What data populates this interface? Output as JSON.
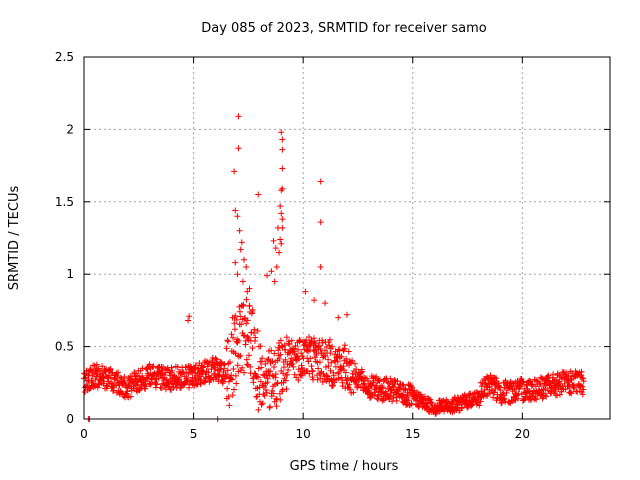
{
  "chart_data": {
    "type": "scatter",
    "title": "Day 085 of 2023, SRMTID for receiver samo",
    "xlabel": "GPS time / hours",
    "ylabel": "SRMTID / TECUs",
    "xlim": [
      0,
      24
    ],
    "ylim": [
      0,
      2.5
    ],
    "grid": true,
    "marker": "plus",
    "color": "#ff0000",
    "x_ticks": [
      0,
      5,
      10,
      15,
      20
    ],
    "y_ticks": [
      0,
      0.5,
      1,
      1.5,
      2,
      2.5
    ],
    "x_tick_labels": [
      "0",
      "5",
      "10",
      "15",
      "20"
    ],
    "y_tick_labels": [
      "0",
      "0.5",
      "1",
      "1.5",
      "2",
      "2.5"
    ],
    "baseline_profile": [
      [
        0.0,
        0.25
      ],
      [
        0.5,
        0.3
      ],
      [
        1.0,
        0.28
      ],
      [
        2.0,
        0.22
      ],
      [
        3.0,
        0.3
      ],
      [
        4.0,
        0.28
      ],
      [
        5.0,
        0.3
      ],
      [
        6.0,
        0.35
      ],
      [
        6.5,
        0.3
      ],
      [
        7.0,
        0.55
      ],
      [
        7.5,
        0.6
      ],
      [
        8.0,
        0.3
      ],
      [
        8.5,
        0.25
      ],
      [
        9.0,
        0.35
      ],
      [
        10.0,
        0.45
      ],
      [
        11.0,
        0.4
      ],
      [
        12.0,
        0.35
      ],
      [
        13.0,
        0.22
      ],
      [
        14.0,
        0.2
      ],
      [
        15.0,
        0.15
      ],
      [
        16.0,
        0.08
      ],
      [
        17.0,
        0.1
      ],
      [
        18.0,
        0.15
      ],
      [
        18.5,
        0.25
      ],
      [
        19.0,
        0.18
      ],
      [
        20.0,
        0.2
      ],
      [
        21.0,
        0.22
      ],
      [
        22.0,
        0.25
      ],
      [
        22.8,
        0.25
      ]
    ],
    "x_range": [
      0.0,
      22.8
    ],
    "sample_count": 1600,
    "outliers": [
      {
        "x": 6.85,
        "y": 1.71
      },
      {
        "x": 7.05,
        "y": 2.09
      },
      {
        "x": 7.05,
        "y": 1.87
      },
      {
        "x": 6.9,
        "y": 1.44
      },
      {
        "x": 7.0,
        "y": 1.4
      },
      {
        "x": 7.1,
        "y": 1.3
      },
      {
        "x": 7.2,
        "y": 1.22
      },
      {
        "x": 7.3,
        "y": 1.1
      },
      {
        "x": 7.4,
        "y": 1.05
      },
      {
        "x": 7.15,
        "y": 1.17
      },
      {
        "x": 6.9,
        "y": 1.08
      },
      {
        "x": 7.0,
        "y": 1.0
      },
      {
        "x": 7.25,
        "y": 0.95
      },
      {
        "x": 7.45,
        "y": 0.88
      },
      {
        "x": 7.55,
        "y": 0.9
      },
      {
        "x": 7.95,
        "y": 1.55
      },
      {
        "x": 8.35,
        "y": 0.99
      },
      {
        "x": 8.55,
        "y": 1.02
      },
      {
        "x": 8.75,
        "y": 1.18
      },
      {
        "x": 8.65,
        "y": 1.23
      },
      {
        "x": 8.85,
        "y": 1.32
      },
      {
        "x": 9.0,
        "y": 1.98
      },
      {
        "x": 9.05,
        "y": 1.93
      },
      {
        "x": 9.05,
        "y": 1.86
      },
      {
        "x": 9.05,
        "y": 1.73
      },
      {
        "x": 9.0,
        "y": 1.58
      },
      {
        "x": 9.05,
        "y": 1.59
      },
      {
        "x": 8.95,
        "y": 1.47
      },
      {
        "x": 9.0,
        "y": 1.42
      },
      {
        "x": 9.05,
        "y": 1.38
      },
      {
        "x": 9.05,
        "y": 1.32
      },
      {
        "x": 8.95,
        "y": 1.24
      },
      {
        "x": 9.0,
        "y": 1.21
      },
      {
        "x": 8.9,
        "y": 1.15
      },
      {
        "x": 8.8,
        "y": 1.05
      },
      {
        "x": 8.7,
        "y": 0.95
      },
      {
        "x": 10.8,
        "y": 1.64
      },
      {
        "x": 10.8,
        "y": 1.36
      },
      {
        "x": 10.8,
        "y": 1.05
      },
      {
        "x": 10.1,
        "y": 0.88
      },
      {
        "x": 10.5,
        "y": 0.82
      },
      {
        "x": 11.0,
        "y": 0.8
      },
      {
        "x": 11.6,
        "y": 0.7
      },
      {
        "x": 12.0,
        "y": 0.72
      },
      {
        "x": 4.8,
        "y": 0.71
      },
      {
        "x": 4.75,
        "y": 0.68
      },
      {
        "x": 0.2,
        "y": 0.0
      },
      {
        "x": 0.25,
        "y": 0.0
      },
      {
        "x": 6.1,
        "y": 0.0
      }
    ]
  }
}
